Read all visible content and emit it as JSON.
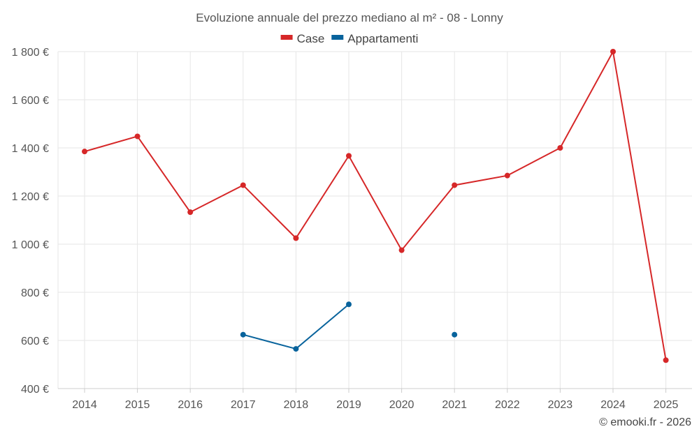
{
  "chart_data": {
    "type": "line",
    "title": "Evoluzione annuale del prezzo mediano al m² - 08 - Lonny",
    "xlabel": "",
    "ylabel": "",
    "categories": [
      "2014",
      "2015",
      "2016",
      "2017",
      "2018",
      "2019",
      "2020",
      "2021",
      "2022",
      "2023",
      "2024",
      "2025"
    ],
    "ylim": [
      400,
      1800
    ],
    "yticks": [
      400,
      600,
      800,
      1000,
      1200,
      1400,
      1600,
      1800
    ],
    "ytick_labels": [
      "400 €",
      "600 €",
      "800 €",
      "1 000 €",
      "1 200 €",
      "1 400 €",
      "1 600 €",
      "1 800 €"
    ],
    "grid": true,
    "legend_position": "top-center",
    "series": [
      {
        "name": "Case",
        "color": "#d62728",
        "values": [
          1385,
          1448,
          1133,
          1245,
          1025,
          1367,
          975,
          1245,
          1285,
          1400,
          1800,
          518
        ]
      },
      {
        "name": "Appartamenti",
        "color": "#08639c",
        "values": [
          null,
          null,
          null,
          624,
          565,
          750,
          null,
          624,
          null,
          null,
          null,
          null
        ]
      }
    ]
  },
  "credit": "© emooki.fr - 2026"
}
